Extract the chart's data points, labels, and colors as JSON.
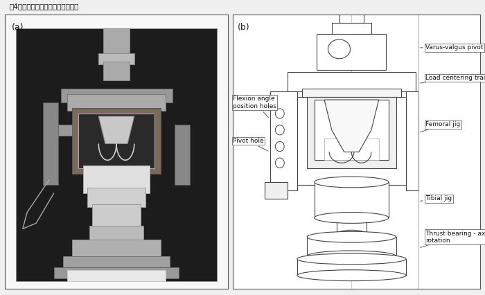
{
  "title": "图4接触应力和接触面积试验示意图",
  "panel_a_label": "(a)",
  "panel_b_label": "(b)",
  "bg_color": "#f0f0f0",
  "fig_bg": "#f0f0f0",
  "labels": {
    "varus_valgus": "Varus-valgus pivot",
    "load_centering": "Load centering track",
    "femoral_jig": "Femoral jig",
    "flexion_angle": "Flexion angle\nposition holes",
    "pivot_hole": "Pivot hole",
    "tibial_jig": "Tibial jig",
    "thrust_bearing": "Thrust bearing - axial\nrotation"
  },
  "line_color": "#444444",
  "photo_bg": "#222222"
}
